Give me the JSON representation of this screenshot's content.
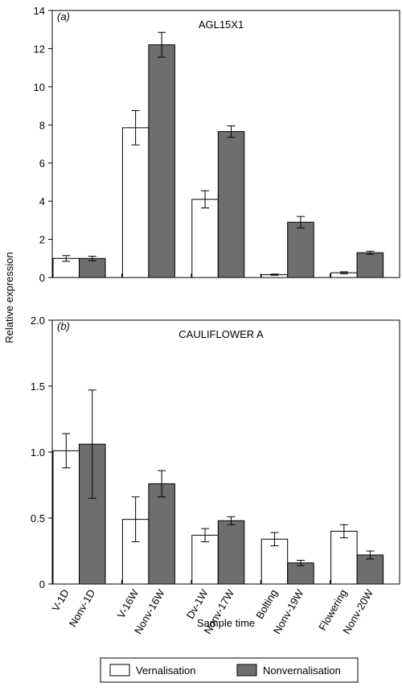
{
  "y_label": "Relative expression",
  "x_label": "Sample time",
  "chart_data": [
    {
      "type": "bar",
      "panel_label": "(a)",
      "title": "AGL15X1",
      "ylim": [
        0,
        14
      ],
      "yticks": [
        0,
        2,
        4,
        6,
        8,
        10,
        12,
        14
      ],
      "categories": [
        [
          "V-1D",
          "Nonv-1D"
        ],
        [
          "V-16W",
          "Nonv-16W"
        ],
        [
          "Dv-1W",
          "Nonv-17W"
        ],
        [
          "Bolting",
          "Nonv-19W"
        ],
        [
          "Flowering",
          "Nonv-20W"
        ]
      ],
      "series": [
        {
          "name": "Vernalisation",
          "color": "#ffffff",
          "values": [
            1.0,
            7.85,
            4.1,
            0.15,
            0.25
          ],
          "errors": [
            0.15,
            0.9,
            0.45,
            0.03,
            0.05
          ]
        },
        {
          "name": "Nonvernalisation",
          "color": "#6e6e6e",
          "values": [
            1.0,
            12.2,
            7.65,
            2.9,
            1.3
          ],
          "errors": [
            0.12,
            0.65,
            0.3,
            0.3,
            0.08
          ]
        }
      ]
    },
    {
      "type": "bar",
      "panel_label": "(b)",
      "title": "CAULIFLOWER A",
      "ylim": [
        0,
        2
      ],
      "yticks": [
        0,
        0.5,
        {
          "value": 1,
          "label": "1.0"
        },
        1.5,
        {
          "value": 2,
          "label": "2.0"
        }
      ],
      "categories": [
        [
          "V-1D",
          "Nonv-1D"
        ],
        [
          "V-16W",
          "Nonv-16W"
        ],
        [
          "Dv-1W",
          "Nonv-17W"
        ],
        [
          "Bolting",
          "Nonv-19W"
        ],
        [
          "Flowering",
          "Nonv-20W"
        ]
      ],
      "series": [
        {
          "name": "Vernalisation",
          "color": "#ffffff",
          "values": [
            1.01,
            0.49,
            0.37,
            0.34,
            0.4
          ],
          "errors": [
            0.13,
            0.17,
            0.05,
            0.05,
            0.05
          ]
        },
        {
          "name": "Nonvernalisation",
          "color": "#6e6e6e",
          "values": [
            1.06,
            0.76,
            0.48,
            0.16,
            0.22
          ],
          "errors": [
            0.41,
            0.1,
            0.03,
            0.02,
            0.03
          ]
        }
      ]
    }
  ]
}
